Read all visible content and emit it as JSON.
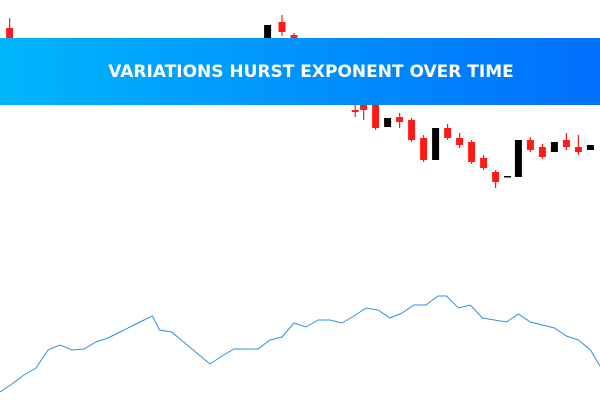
{
  "chart_data": [
    {
      "type": "candlestick",
      "title": "VARIATIONS HURST EXPONENT OVER TIME",
      "up_color": "#000000",
      "down_color": "#ff1a1a",
      "xlim": [
        0,
        50
      ],
      "ylim": [
        0,
        400
      ],
      "x": [
        0.8,
        22.3,
        23.5,
        24.5,
        29.6,
        30.3,
        31.3,
        32.3,
        33.3,
        34.3,
        35.3,
        36.3,
        37.3,
        38.3,
        39.3,
        40.3,
        41.3,
        42.3,
        43.2,
        44.2,
        45.2,
        46.2,
        47.2,
        48.2,
        49.2
      ],
      "open": [
        372,
        362,
        378,
        365,
        290,
        295,
        295,
        273,
        283,
        280,
        262,
        240,
        272,
        262,
        258,
        242,
        228,
        223,
        223,
        260,
        253,
        248,
        260,
        253,
        250
      ],
      "high": [
        382,
        375,
        385,
        367,
        300,
        300,
        298,
        282,
        287,
        282,
        265,
        272,
        276,
        267,
        260,
        245,
        230,
        224,
        260,
        263,
        256,
        258,
        267,
        265,
        255
      ],
      "low": [
        360,
        362,
        364,
        355,
        283,
        280,
        270,
        273,
        272,
        258,
        238,
        240,
        260,
        252,
        236,
        230,
        212,
        223,
        223,
        248,
        241,
        248,
        250,
        245,
        250
      ],
      "close": [
        360,
        375,
        368,
        358,
        288,
        290,
        272,
        282,
        278,
        260,
        240,
        272,
        262,
        255,
        238,
        232,
        218,
        224,
        260,
        250,
        243,
        258,
        253,
        248,
        255
      ]
    },
    {
      "type": "line",
      "color": "#2f8fe8",
      "xlim": [
        0,
        50
      ],
      "ylim": [
        0,
        400
      ],
      "x": [
        0,
        1,
        2,
        3,
        4,
        5,
        6,
        7,
        8,
        9,
        10,
        11,
        12,
        12.7,
        13.3,
        14.3,
        15.3,
        16.3,
        17.5,
        18.5,
        19.5,
        20.5,
        21.5,
        22.5,
        23.5,
        24.5,
        25.5,
        26.5,
        27.5,
        28.5,
        29.5,
        30.5,
        31.5,
        32.5,
        33.5,
        34.5,
        35.5,
        36.5,
        37.2,
        38.2,
        39.2,
        40.2,
        41.2,
        42.2,
        43.2,
        44.2,
        45.2,
        46.2,
        47.2,
        48.2,
        49.2,
        50
      ],
      "values": [
        8,
        16,
        25,
        32,
        50,
        55,
        50,
        51,
        58,
        62,
        68,
        74,
        80,
        84,
        70,
        68,
        58,
        48,
        36,
        44,
        51,
        51,
        51,
        60,
        63,
        77,
        73,
        80,
        80,
        77,
        84,
        92,
        90,
        82,
        87,
        95,
        95,
        104,
        104,
        92,
        95,
        82,
        80,
        78,
        86,
        78,
        75,
        72,
        64,
        60,
        50,
        34
      ]
    }
  ]
}
